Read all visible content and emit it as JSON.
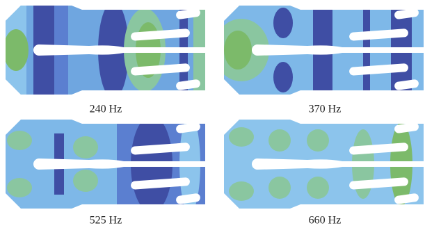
{
  "panels": [
    {
      "caption": "240 Hz"
    },
    {
      "caption": "370 Hz"
    },
    {
      "caption": "525 Hz"
    },
    {
      "caption": "660 Hz"
    }
  ]
}
